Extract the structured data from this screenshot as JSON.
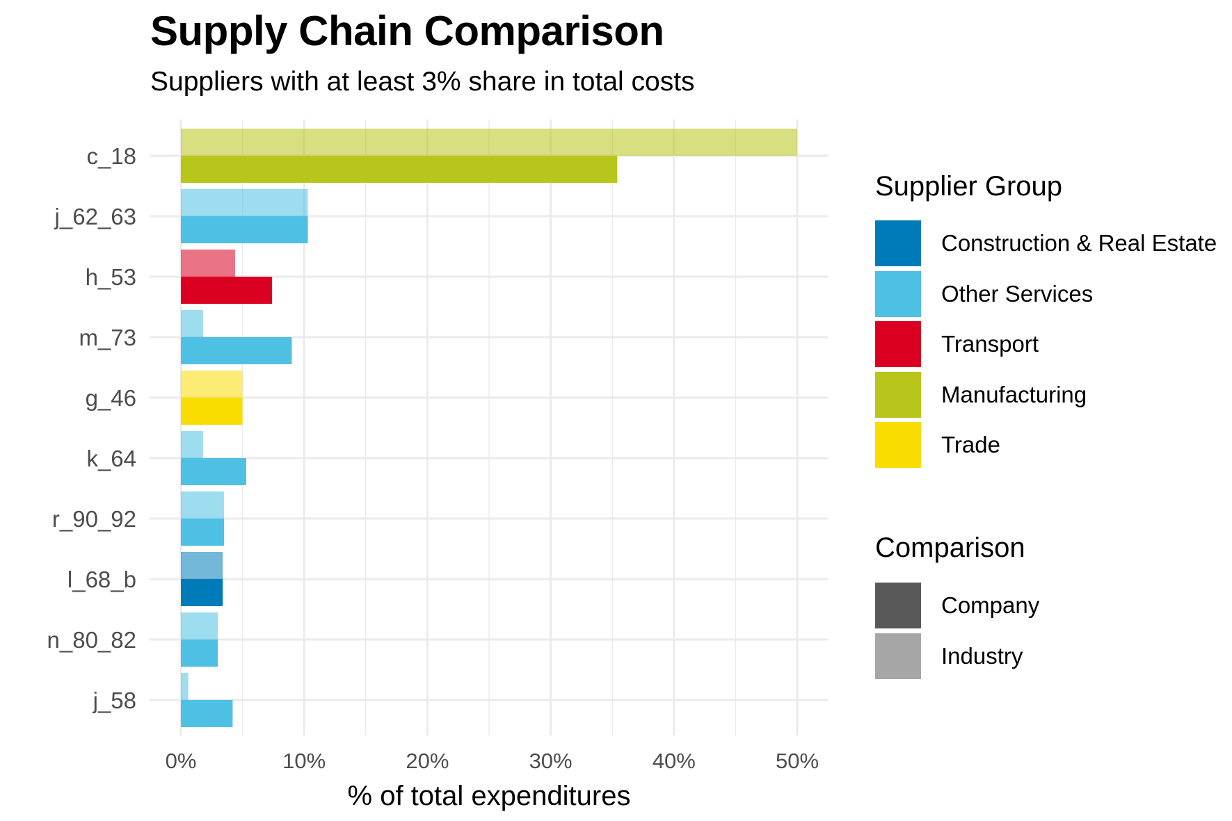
{
  "title": "Supply Chain Comparison",
  "subtitle": "Suppliers with at least 3% share in total costs",
  "legend": {
    "group_title": "Supplier Group",
    "groups": [
      {
        "name": "Construction & Real Estate",
        "color": "#007BBA"
      },
      {
        "name": "Other Services",
        "color": "#4EC0E4"
      },
      {
        "name": "Transport",
        "color": "#DB0022"
      },
      {
        "name": "Manufacturing",
        "color": "#B8C51A"
      },
      {
        "name": "Trade",
        "color": "#F9DD00"
      }
    ],
    "comparison_title": "Comparison",
    "comparisons": [
      {
        "name": "Company",
        "color": "#595959"
      },
      {
        "name": "Industry",
        "color": "#A6A6A6"
      }
    ]
  },
  "chart_data": {
    "type": "bar",
    "orientation": "horizontal",
    "xlabel": "% of total expenditures",
    "ylabel": "",
    "xlim": [
      0,
      50
    ],
    "x_ticks": [
      "0%",
      "10%",
      "20%",
      "30%",
      "40%",
      "50%"
    ],
    "categories": [
      "c_18",
      "j_62_63",
      "h_53",
      "m_73",
      "g_46",
      "k_64",
      "r_90_92",
      "l_68_b",
      "n_80_82",
      "j_58"
    ],
    "category_group": [
      "Manufacturing",
      "Other Services",
      "Transport",
      "Other Services",
      "Trade",
      "Other Services",
      "Other Services",
      "Construction & Real Estate",
      "Other Services",
      "Other Services"
    ],
    "series": [
      {
        "name": "Industry",
        "values": [
          50.0,
          10.3,
          4.4,
          1.8,
          5.0,
          1.8,
          3.5,
          3.4,
          3.0,
          0.6
        ]
      },
      {
        "name": "Company",
        "values": [
          35.4,
          10.3,
          7.4,
          9.0,
          5.0,
          5.3,
          3.5,
          3.4,
          3.0,
          4.2
        ]
      }
    ],
    "grid": true,
    "legend_position": "right"
  }
}
